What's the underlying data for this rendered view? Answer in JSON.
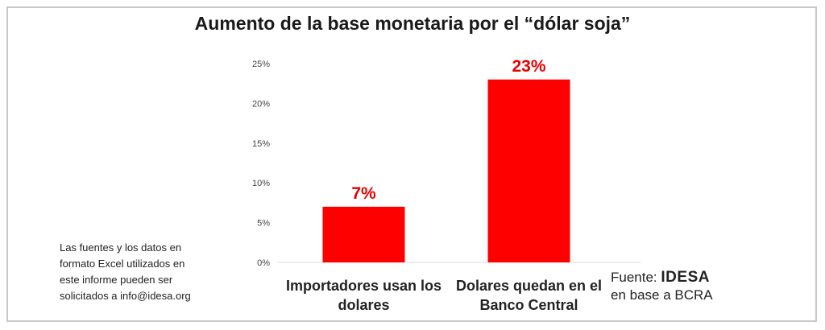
{
  "chart_data": {
    "type": "bar",
    "title": "Aumento de la base monetaria por el “dólar soja”",
    "categories": [
      "Importadores usan los dolares",
      "Dolares quedan en el Banco Central"
    ],
    "category_lines": [
      [
        "Importadores usan los",
        "dolares"
      ],
      [
        "Dolares quedan en el",
        "Banco Central"
      ]
    ],
    "values": [
      7,
      23
    ],
    "data_labels": [
      "7%",
      "23%"
    ],
    "yticks": [
      "0%",
      "5%",
      "10%",
      "15%",
      "20%",
      "25%"
    ],
    "ylim": [
      0,
      25
    ],
    "bar_color": "#ff0000",
    "label_color": "#e60000",
    "grid": false
  },
  "note": "Las fuentes y los datos en\nformato Excel utilizados en\neste informe pueden ser\nsolicitados a info@idesa.org",
  "source": {
    "prefix": "Fuente:",
    "brand": "IDESA",
    "suffix": "en base a BCRA"
  }
}
